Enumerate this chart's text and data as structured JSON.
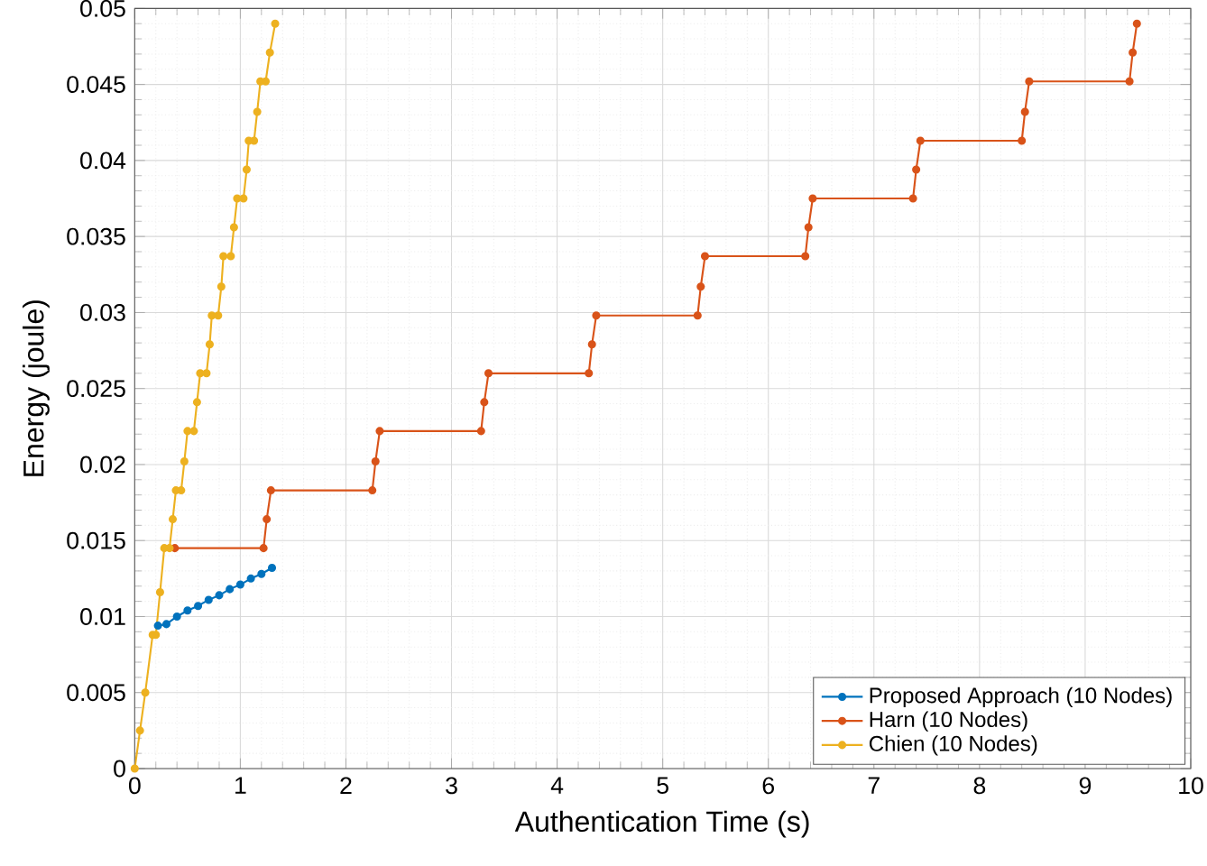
{
  "chart_data": {
    "type": "line",
    "xlabel": "Authentication Time (s)",
    "ylabel": "Energy (joule)",
    "xlim": [
      0,
      10
    ],
    "ylim": [
      0,
      0.05
    ],
    "xticks": [
      0,
      1,
      2,
      3,
      4,
      5,
      6,
      7,
      8,
      9,
      10
    ],
    "yticks": [
      0,
      0.005,
      0.01,
      0.015,
      0.02,
      0.025,
      0.03,
      0.035,
      0.04,
      0.045,
      0.05
    ],
    "grid": true,
    "legend": "bottom right",
    "marker": "circle",
    "line_style": "solid",
    "series": [
      {
        "name": "Proposed Approach (10 Nodes)",
        "color": "#0072bd",
        "x": [
          0.22,
          0.3,
          0.4,
          0.5,
          0.6,
          0.7,
          0.8,
          0.9,
          1.0,
          1.1,
          1.2,
          1.3
        ],
        "values": [
          0.0094,
          0.0095,
          0.01,
          0.0104,
          0.0107,
          0.0111,
          0.0114,
          0.0118,
          0.0121,
          0.0125,
          0.0128,
          0.0132
        ]
      },
      {
        "name": "Harn (10 Nodes)",
        "color": "#d95319",
        "x": [
          0.38,
          1.22,
          1.25,
          1.29,
          2.25,
          2.28,
          2.32,
          3.28,
          3.31,
          3.35,
          4.3,
          4.33,
          4.37,
          5.33,
          5.36,
          5.4,
          6.35,
          6.38,
          6.42,
          7.37,
          7.4,
          7.44,
          8.4,
          8.43,
          8.47,
          9.42,
          9.45,
          9.49
        ],
        "values": [
          0.0145,
          0.0145,
          0.0164,
          0.0183,
          0.0183,
          0.0202,
          0.0222,
          0.0222,
          0.0241,
          0.026,
          0.026,
          0.0279,
          0.0298,
          0.0298,
          0.0317,
          0.0337,
          0.0337,
          0.0356,
          0.0375,
          0.0375,
          0.0394,
          0.0413,
          0.0413,
          0.0432,
          0.0452,
          0.0452,
          0.0471,
          0.049
        ]
      },
      {
        "name": "Chien (10 Nodes)",
        "color": "#edb120",
        "x": [
          0,
          0.05,
          0.1,
          0.17,
          0.2,
          0.24,
          0.28,
          0.33,
          0.36,
          0.39,
          0.44,
          0.47,
          0.5,
          0.56,
          0.59,
          0.62,
          0.68,
          0.71,
          0.73,
          0.79,
          0.82,
          0.84,
          0.91,
          0.94,
          0.97,
          1.03,
          1.06,
          1.08,
          1.13,
          1.16,
          1.19,
          1.24,
          1.28,
          1.33
        ],
        "values": [
          0,
          0.0025,
          0.005,
          0.0088,
          0.0088,
          0.0116,
          0.0145,
          0.0145,
          0.0164,
          0.0183,
          0.0183,
          0.0202,
          0.0222,
          0.0222,
          0.0241,
          0.026,
          0.026,
          0.0279,
          0.0298,
          0.0298,
          0.0317,
          0.0337,
          0.0337,
          0.0356,
          0.0375,
          0.0375,
          0.0394,
          0.0413,
          0.0413,
          0.0432,
          0.0452,
          0.0452,
          0.0471,
          0.049
        ]
      }
    ]
  }
}
